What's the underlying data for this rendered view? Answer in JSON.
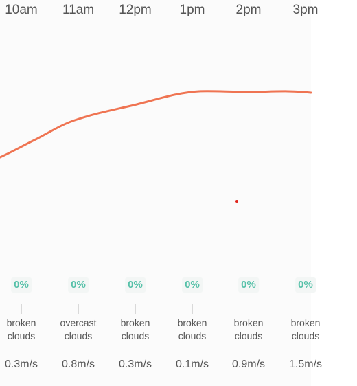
{
  "hours": [
    {
      "time": "10am",
      "precipitation": "0%",
      "description": "broken clouds",
      "wind": "0.3m/s"
    },
    {
      "time": "11am",
      "precipitation": "0%",
      "description": "overcast clouds",
      "wind": "0.8m/s"
    },
    {
      "time": "12pm",
      "precipitation": "0%",
      "description": "broken clouds",
      "wind": "0.3m/s"
    },
    {
      "time": "1pm",
      "precipitation": "0%",
      "description": "broken clouds",
      "wind": "0.1m/s"
    },
    {
      "time": "2pm",
      "precipitation": "0%",
      "description": "broken clouds",
      "wind": "0.9m/s"
    },
    {
      "time": "3pm",
      "precipitation": "0%",
      "description": "broken clouds",
      "wind": "1.5m/s"
    }
  ],
  "colors": {
    "temperature_line": "#ef7452",
    "precipitation_text": "#57c1a9",
    "marker": "#e0241b"
  },
  "icons": {
    "marker": "red-dot-marker"
  }
}
